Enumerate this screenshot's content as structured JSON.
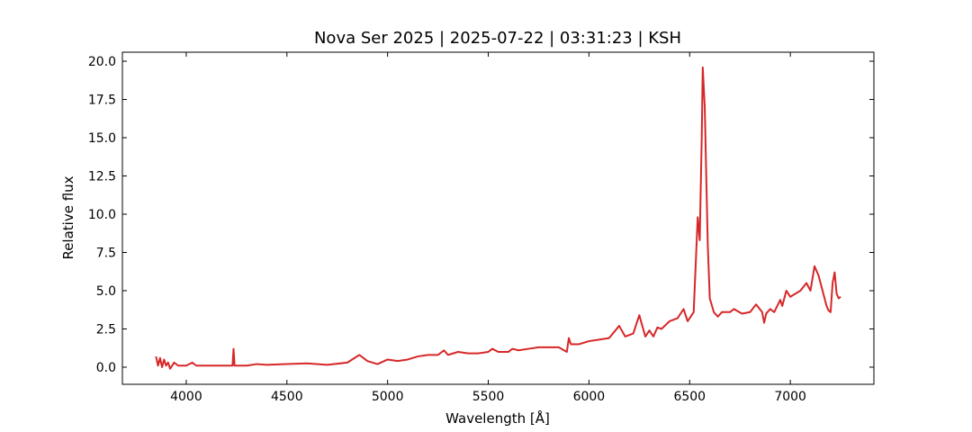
{
  "chart_data": {
    "type": "line",
    "title": "Nova Ser 2025 | 2025-07-22 | 03:31:23 | KSH",
    "x_label": "Wavelength [Å]",
    "y_label": "Relative flux",
    "x": [
      3850,
      3860,
      3870,
      3880,
      3890,
      3900,
      3910,
      3920,
      3940,
      3960,
      3980,
      4000,
      4030,
      4050,
      4100,
      4200,
      4230,
      4235,
      4240,
      4300,
      4350,
      4400,
      4500,
      4600,
      4700,
      4800,
      4860,
      4900,
      4950,
      5000,
      5050,
      5100,
      5150,
      5200,
      5250,
      5280,
      5300,
      5350,
      5400,
      5450,
      5500,
      5520,
      5550,
      5600,
      5620,
      5650,
      5700,
      5750,
      5800,
      5850,
      5890,
      5900,
      5910,
      5950,
      6000,
      6050,
      6100,
      6150,
      6180,
      6220,
      6250,
      6280,
      6300,
      6320,
      6340,
      6360,
      6400,
      6440,
      6470,
      6490,
      6520,
      6540,
      6550,
      6560,
      6565,
      6575,
      6590,
      6600,
      6620,
      6640,
      6660,
      6700,
      6720,
      6760,
      6800,
      6830,
      6860,
      6870,
      6880,
      6900,
      6920,
      6950,
      6960,
      6980,
      7000,
      7050,
      7080,
      7100,
      7120,
      7140,
      7160,
      7180,
      7190,
      7200,
      7210,
      7220,
      7230,
      7240,
      7250
    ],
    "series": [
      {
        "name": "Relative flux",
        "color": "#d62728",
        "values": [
          0.7,
          0.1,
          0.6,
          0.0,
          0.5,
          0.1,
          0.3,
          -0.1,
          0.3,
          0.1,
          0.1,
          0.1,
          0.3,
          0.1,
          0.1,
          0.1,
          0.1,
          1.2,
          0.1,
          0.1,
          0.2,
          0.15,
          0.2,
          0.25,
          0.15,
          0.3,
          0.8,
          0.4,
          0.2,
          0.5,
          0.4,
          0.5,
          0.7,
          0.8,
          0.8,
          1.1,
          0.8,
          1.0,
          0.9,
          0.9,
          1.0,
          1.2,
          1.0,
          1.0,
          1.2,
          1.1,
          1.2,
          1.3,
          1.3,
          1.3,
          1.0,
          1.9,
          1.5,
          1.5,
          1.7,
          1.8,
          1.9,
          2.7,
          2.0,
          2.2,
          3.4,
          2.0,
          2.4,
          2.0,
          2.6,
          2.5,
          3.0,
          3.2,
          3.8,
          3.0,
          3.6,
          9.8,
          8.3,
          15,
          19.6,
          17,
          8,
          4.5,
          3.6,
          3.3,
          3.6,
          3.6,
          3.8,
          3.5,
          3.6,
          4.1,
          3.6,
          2.9,
          3.5,
          3.8,
          3.6,
          4.4,
          4.0,
          5.0,
          4.6,
          5.0,
          5.5,
          5.0,
          6.6,
          6.0,
          5.0,
          4.0,
          3.7,
          3.6,
          5.5,
          6.2,
          4.8,
          4.5,
          4.6
        ]
      }
    ],
    "xlim": [
      3683,
      7415
    ],
    "ylim": [
      -1.12,
      20.59
    ],
    "xticks": [
      4000,
      4500,
      5000,
      5500,
      6000,
      6500,
      7000
    ],
    "yticks": [
      {
        "value": 0,
        "label": "0.0"
      },
      {
        "value": 2.5,
        "label": "2.5"
      },
      {
        "value": 5,
        "label": "5.0"
      },
      {
        "value": 7.5,
        "label": "7.5"
      },
      {
        "value": 10,
        "label": "10.0"
      },
      {
        "value": 12.5,
        "label": "12.5"
      },
      {
        "value": 15,
        "label": "15.0"
      },
      {
        "value": 17.5,
        "label": "17.5"
      },
      {
        "value": 20,
        "label": "20.0"
      }
    ]
  }
}
